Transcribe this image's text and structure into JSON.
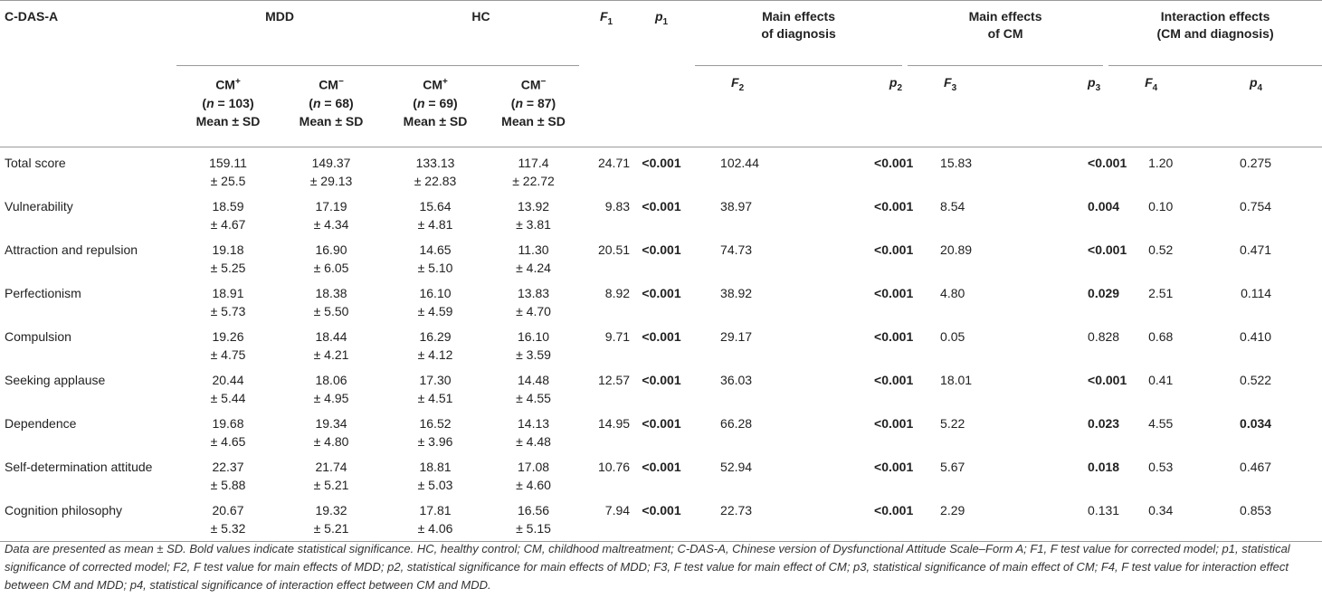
{
  "header": {
    "first_col": "C-DAS-A",
    "mdd": "MDD",
    "hc": "HC",
    "f1": "F",
    "f1_sub": "1",
    "p1": "p",
    "p1_sub": "1",
    "diag_line1": "Main effects",
    "diag_line2": "of diagnosis",
    "cm_line1": "Main effects",
    "cm_line2": "of CM",
    "int_line1": "Interaction effects",
    "int_line2": "(CM and diagnosis)",
    "groups": [
      {
        "label": "CM",
        "sup": "+",
        "n_prefix": "(",
        "n_var": "n",
        "n_text": " = 103)",
        "stat": "Mean ± SD"
      },
      {
        "label": "CM",
        "sup": "−",
        "n_prefix": "(",
        "n_var": "n",
        "n_text": " = 68)",
        "stat": "Mean ± SD"
      },
      {
        "label": "CM",
        "sup": "+",
        "n_prefix": "(",
        "n_var": "n",
        "n_text": " = 69)",
        "stat": "Mean ± SD"
      },
      {
        "label": "CM",
        "sup": "−",
        "n_prefix": "(",
        "n_var": "n",
        "n_text": " = 87)",
        "stat": "Mean ± SD"
      }
    ],
    "f2": "F",
    "f2_sub": "2",
    "p2": "p",
    "p2_sub": "2",
    "f3": "F",
    "f3_sub": "3",
    "p3": "p",
    "p3_sub": "3",
    "f4": "F",
    "f4_sub": "4",
    "p4": "p",
    "p4_sub": "4"
  },
  "rows": [
    {
      "label": "Total score",
      "mdd_pos": {
        "mean": "159.11",
        "sd": "± 25.5"
      },
      "mdd_neg": {
        "mean": "149.37",
        "sd": "± 29.13"
      },
      "hc_pos": {
        "mean": "133.13",
        "sd": "± 22.83"
      },
      "hc_neg": {
        "mean": "117.4",
        "sd": "± 22.72"
      },
      "f1": "24.71",
      "p1": "<0.001",
      "f2": "102.44",
      "p2": "<0.001",
      "f3": "15.83",
      "p3": "<0.001",
      "f4": "1.20",
      "p4": "0.275"
    },
    {
      "label": "Vulnerability",
      "mdd_pos": {
        "mean": "18.59",
        "sd": "± 4.67"
      },
      "mdd_neg": {
        "mean": "17.19",
        "sd": "± 4.34"
      },
      "hc_pos": {
        "mean": "15.64",
        "sd": "± 4.81"
      },
      "hc_neg": {
        "mean": "13.92",
        "sd": "± 3.81"
      },
      "f1": "9.83",
      "p1": "<0.001",
      "f2": "38.97",
      "p2": "<0.001",
      "f3": "8.54",
      "p3": "0.004",
      "f4": "0.10",
      "p4": "0.754"
    },
    {
      "label": "Attraction and repulsion",
      "mdd_pos": {
        "mean": "19.18",
        "sd": "± 5.25"
      },
      "mdd_neg": {
        "mean": "16.90",
        "sd": "± 6.05"
      },
      "hc_pos": {
        "mean": "14.65",
        "sd": "± 5.10"
      },
      "hc_neg": {
        "mean": "11.30",
        "sd": "± 4.24"
      },
      "f1": "20.51",
      "p1": "<0.001",
      "f2": "74.73",
      "p2": "<0.001",
      "f3": "20.89",
      "p3": "<0.001",
      "f4": "0.52",
      "p4": "0.471"
    },
    {
      "label": "Perfectionism",
      "mdd_pos": {
        "mean": "18.91",
        "sd": "± 5.73"
      },
      "mdd_neg": {
        "mean": "18.38",
        "sd": "± 5.50"
      },
      "hc_pos": {
        "mean": "16.10",
        "sd": "± 4.59"
      },
      "hc_neg": {
        "mean": "13.83",
        "sd": "± 4.70"
      },
      "f1": "8.92",
      "p1": "<0.001",
      "f2": "38.92",
      "p2": "<0.001",
      "f3": "4.80",
      "p3": "0.029",
      "f4": "2.51",
      "p4": "0.114"
    },
    {
      "label": "Compulsion",
      "mdd_pos": {
        "mean": "19.26",
        "sd": "± 4.75"
      },
      "mdd_neg": {
        "mean": "18.44",
        "sd": "± 4.21"
      },
      "hc_pos": {
        "mean": "16.29",
        "sd": "± 4.12"
      },
      "hc_neg": {
        "mean": "16.10",
        "sd": "± 3.59"
      },
      "f1": "9.71",
      "p1": "<0.001",
      "f2": "29.17",
      "p2": "<0.001",
      "f3": "0.05",
      "p3": "0.828",
      "f4": "0.68",
      "p4": "0.410"
    },
    {
      "label": "Seeking applause",
      "mdd_pos": {
        "mean": "20.44",
        "sd": "± 5.44"
      },
      "mdd_neg": {
        "mean": "18.06",
        "sd": "± 4.95"
      },
      "hc_pos": {
        "mean": "17.30",
        "sd": "± 4.51"
      },
      "hc_neg": {
        "mean": "14.48",
        "sd": "± 4.55"
      },
      "f1": "12.57",
      "p1": "<0.001",
      "f2": "36.03",
      "p2": "<0.001",
      "f3": "18.01",
      "p3": "<0.001",
      "f4": "0.41",
      "p4": "0.522"
    },
    {
      "label": "Dependence",
      "mdd_pos": {
        "mean": "19.68",
        "sd": "± 4.65"
      },
      "mdd_neg": {
        "mean": "19.34",
        "sd": "± 4.80"
      },
      "hc_pos": {
        "mean": "16.52",
        "sd": "± 3.96"
      },
      "hc_neg": {
        "mean": "14.13",
        "sd": "± 4.48"
      },
      "f1": "14.95",
      "p1": "<0.001",
      "f2": "66.28",
      "p2": "<0.001",
      "f3": "5.22",
      "p3": "0.023",
      "f4": "4.55",
      "p4": "0.034"
    },
    {
      "label": "Self-determination attitude",
      "mdd_pos": {
        "mean": "22.37",
        "sd": "± 5.88"
      },
      "mdd_neg": {
        "mean": "21.74",
        "sd": "± 5.21"
      },
      "hc_pos": {
        "mean": "18.81",
        "sd": "± 5.03"
      },
      "hc_neg": {
        "mean": "17.08",
        "sd": "± 4.60"
      },
      "f1": "10.76",
      "p1": "<0.001",
      "f2": "52.94",
      "p2": "<0.001",
      "f3": "5.67",
      "p3": "0.018",
      "f4": "0.53",
      "p4": "0.467"
    },
    {
      "label": "Cognition philosophy",
      "mdd_pos": {
        "mean": "20.67",
        "sd": "± 5.32"
      },
      "mdd_neg": {
        "mean": "19.32",
        "sd": "± 5.21"
      },
      "hc_pos": {
        "mean": "17.81",
        "sd": "± 4.06"
      },
      "hc_neg": {
        "mean": "16.56",
        "sd": "± 5.15"
      },
      "f1": "7.94",
      "p1": "<0.001",
      "f2": "22.73",
      "p2": "<0.001",
      "f3": "2.29",
      "p3": "0.131",
      "f4": "0.34",
      "p4": "0.853"
    }
  ],
  "bold_cells": {
    "p1": [
      0,
      1,
      2,
      3,
      4,
      5,
      6,
      7,
      8
    ],
    "p2": [
      0,
      1,
      2,
      3,
      4,
      5,
      6,
      7,
      8
    ],
    "p3": [
      0,
      1,
      2,
      3,
      5,
      6,
      7
    ],
    "p4": [
      6
    ]
  },
  "note": "Data are presented as mean ± SD. Bold values indicate statistical significance. HC, healthy control; CM, childhood maltreatment; C-DAS-A, Chinese version of Dysfunctional Attitude Scale–Form A; F1, F test value for corrected model; p1, statistical significance of corrected model; F2, F test value for main effects of MDD; p2, statistical significance for main effects of MDD; F3, F test value for main effect of CM; p3, statistical significance of main effect of CM; F4, F test value for interaction effect between CM and MDD; p4, statistical significance of interaction effect between CM and MDD."
}
